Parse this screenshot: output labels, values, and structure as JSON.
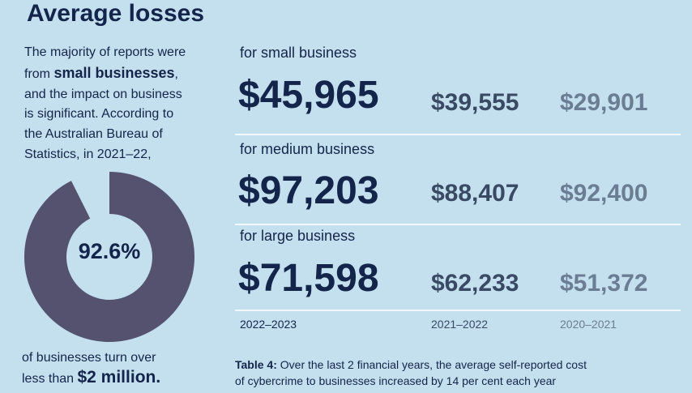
{
  "title": "Average losses",
  "intro": {
    "line1": "The majority of reports were",
    "line2_pre": "from ",
    "line2_bold": "small businesses",
    "line2_post": ",",
    "line3": "and the impact on business",
    "line4": "is significant. According to",
    "line5": "the Australian Bureau of",
    "line6": "Statistics, in 2021–22,"
  },
  "donut": {
    "label": "92.6%",
    "value": 0.926,
    "fill_color": "#54526f",
    "gap_color": "#c4dfee"
  },
  "footnote": {
    "line1": "of businesses turn over",
    "line2_pre": "less than ",
    "line2_bold": "$2 million."
  },
  "segments": [
    {
      "label": "for small business",
      "values": [
        "$45,965",
        "$39,555",
        "$29,901"
      ]
    },
    {
      "label": "for medium business",
      "values": [
        "$97,203",
        "$88,407",
        "$92,400"
      ]
    },
    {
      "label": "for large business",
      "values": [
        "$71,598",
        "$62,233",
        "$51,372"
      ]
    }
  ],
  "years": [
    "2022–2023",
    "2021–2022",
    "2020–2021"
  ],
  "caption": {
    "bold": "Table 4:",
    "text": " Over the last 2 financial years, the average self-reported cost",
    "line2": "of cybercrime to businesses increased by 14 per cent each year"
  }
}
